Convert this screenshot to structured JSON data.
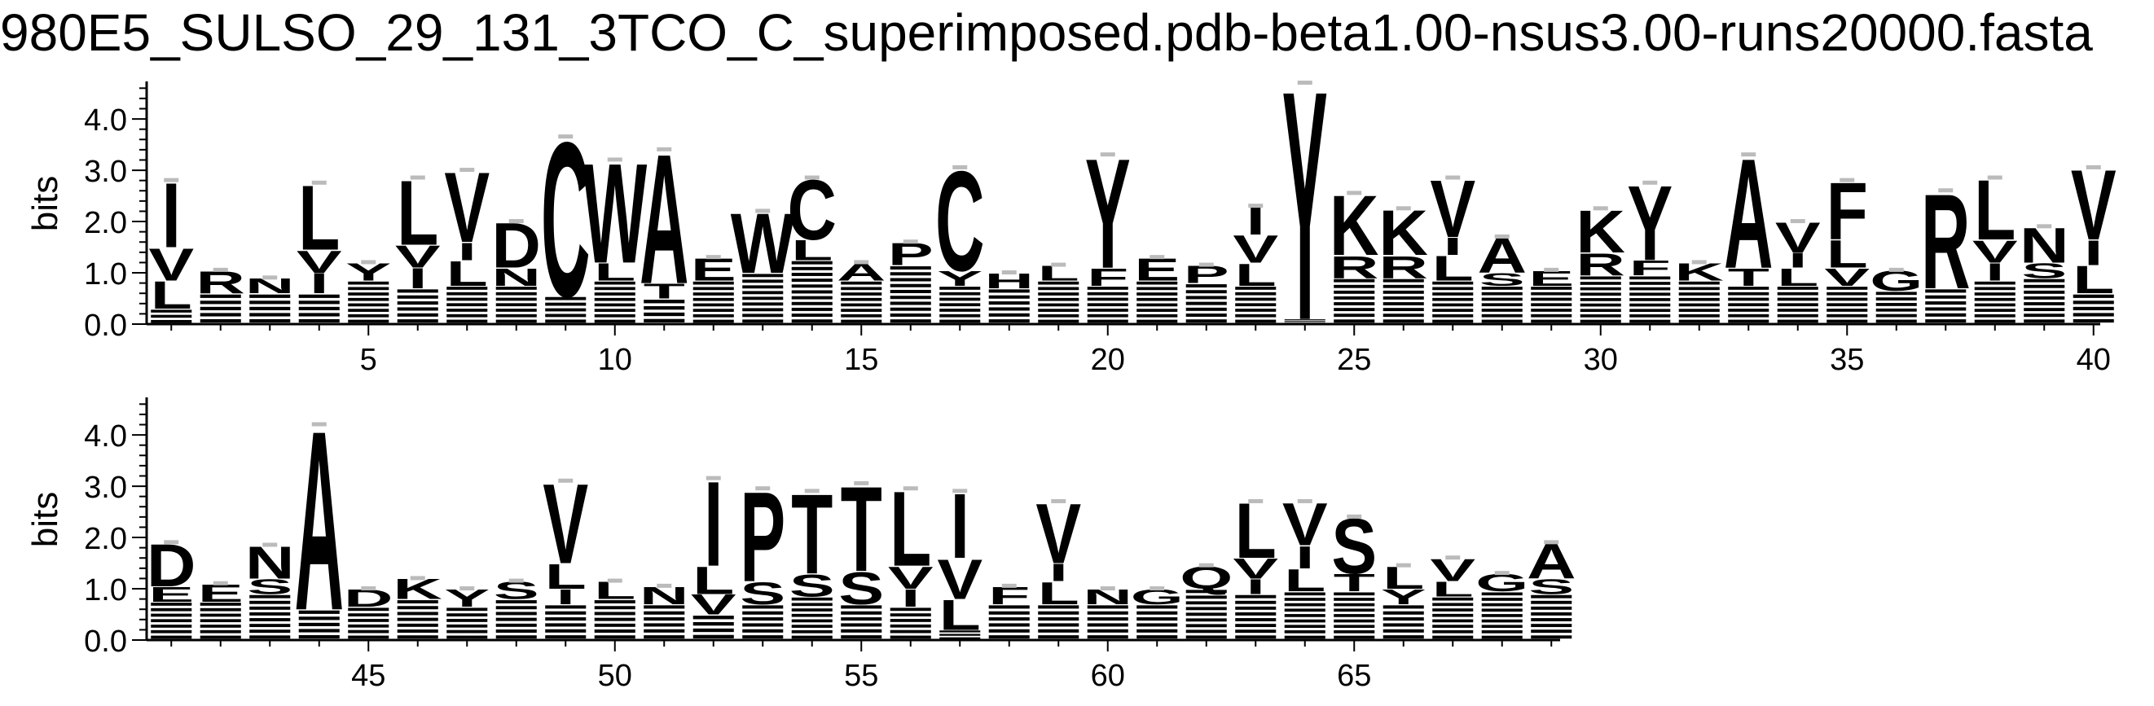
{
  "title": "980E5_SULSO_29_131_3TCO_C_superimposed.pdb-beta1.00-nsus3.00-runs20000.fasta",
  "chart_data": [
    {
      "type": "sequence-logo",
      "ylabel": "bits",
      "ylim": [
        0,
        4.7
      ],
      "yticks": [
        "0.0",
        "1.0",
        "2.0",
        "3.0",
        "4.0"
      ],
      "xlim": [
        1,
        40
      ],
      "xticks": [
        5,
        10,
        15,
        20,
        25,
        30,
        35,
        40
      ],
      "columns": [
        {
          "pos": 1,
          "total": 2.8,
          "letters": [
            {
              "c": "L",
              "h": 0.55
            },
            {
              "c": "V",
              "h": 0.65
            },
            {
              "c": "I",
              "h": 1.3
            }
          ]
        },
        {
          "pos": 2,
          "total": 1.05,
          "letters": [
            {
              "c": "R",
              "h": 0.45
            }
          ]
        },
        {
          "pos": 3,
          "total": 0.9,
          "letters": [
            {
              "c": "N",
              "h": 0.3
            }
          ]
        },
        {
          "pos": 4,
          "total": 2.75,
          "letters": [
            {
              "c": "I",
              "h": 0.4
            },
            {
              "c": "V",
              "h": 0.45
            },
            {
              "c": "L",
              "h": 1.3
            }
          ]
        },
        {
          "pos": 5,
          "total": 1.2,
          "letters": [
            {
              "c": "Y",
              "h": 0.35
            }
          ]
        },
        {
          "pos": 6,
          "total": 2.85,
          "letters": [
            {
              "c": "I",
              "h": 0.4
            },
            {
              "c": "V",
              "h": 0.45
            },
            {
              "c": "L",
              "h": 1.3
            }
          ]
        },
        {
          "pos": 7,
          "total": 3.0,
          "letters": [
            {
              "c": "L",
              "h": 0.5
            },
            {
              "c": "I",
              "h": 0.35
            },
            {
              "c": "V",
              "h": 1.4
            }
          ]
        },
        {
          "pos": 8,
          "total": 2.0,
          "letters": [
            {
              "c": "N",
              "h": 0.35
            },
            {
              "c": "D",
              "h": 0.9
            }
          ]
        },
        {
          "pos": 9,
          "total": 3.65,
          "letters": [
            {
              "c": "C",
              "h": 3.1
            }
          ]
        },
        {
          "pos": 10,
          "total": 3.2,
          "letters": [
            {
              "c": "L",
              "h": 0.35
            },
            {
              "c": "W",
              "h": 2.0
            }
          ]
        },
        {
          "pos": 11,
          "total": 3.4,
          "letters": [
            {
              "c": "T",
              "h": 0.3
            },
            {
              "c": "A",
              "h": 2.6
            }
          ]
        },
        {
          "pos": 12,
          "total": 1.3,
          "letters": [
            {
              "c": "E",
              "h": 0.45
            }
          ]
        },
        {
          "pos": 13,
          "total": 2.2,
          "letters": [
            {
              "c": "W",
              "h": 1.2
            }
          ]
        },
        {
          "pos": 14,
          "total": 2.85,
          "letters": [
            {
              "c": "L",
              "h": 0.4
            },
            {
              "c": "C",
              "h": 1.2
            }
          ]
        },
        {
          "pos": 15,
          "total": 1.2,
          "letters": [
            {
              "c": "A",
              "h": 0.35
            }
          ]
        },
        {
          "pos": 16,
          "total": 1.6,
          "letters": [
            {
              "c": "P",
              "h": 0.45
            }
          ]
        },
        {
          "pos": 17,
          "total": 3.05,
          "letters": [
            {
              "c": "Y",
              "h": 0.3
            },
            {
              "c": "C",
              "h": 2.0
            }
          ]
        },
        {
          "pos": 18,
          "total": 1.0,
          "letters": [
            {
              "c": "H",
              "h": 0.3
            }
          ]
        },
        {
          "pos": 19,
          "total": 1.15,
          "letters": [
            {
              "c": "L",
              "h": 0.3
            }
          ]
        },
        {
          "pos": 20,
          "total": 3.3,
          "letters": [
            {
              "c": "F",
              "h": 0.35
            },
            {
              "c": "Y",
              "h": 2.2
            }
          ]
        },
        {
          "pos": 21,
          "total": 1.3,
          "letters": [
            {
              "c": "E",
              "h": 0.45
            }
          ]
        },
        {
          "pos": 22,
          "total": 1.15,
          "letters": [
            {
              "c": "P",
              "h": 0.35
            }
          ]
        },
        {
          "pos": 23,
          "total": 2.3,
          "letters": [
            {
              "c": "L",
              "h": 0.45
            },
            {
              "c": "V",
              "h": 0.55
            },
            {
              "c": "I",
              "h": 0.55
            }
          ]
        },
        {
          "pos": 24,
          "total": 4.7,
          "letters": [
            {
              "c": "Y",
              "h": 4.6
            }
          ]
        },
        {
          "pos": 25,
          "total": 2.55,
          "letters": [
            {
              "c": "R",
              "h": 0.45
            },
            {
              "c": "K",
              "h": 1.2
            }
          ]
        },
        {
          "pos": 26,
          "total": 2.25,
          "letters": [
            {
              "c": "R",
              "h": 0.45
            },
            {
              "c": "K",
              "h": 0.9
            }
          ]
        },
        {
          "pos": 27,
          "total": 2.85,
          "letters": [
            {
              "c": "L",
              "h": 0.5
            },
            {
              "c": "I",
              "h": 0.35
            },
            {
              "c": "V",
              "h": 1.15
            }
          ]
        },
        {
          "pos": 28,
          "total": 1.7,
          "letters": [
            {
              "c": "S",
              "h": 0.25
            },
            {
              "c": "A",
              "h": 0.7
            }
          ]
        },
        {
          "pos": 29,
          "total": 1.05,
          "letters": [
            {
              "c": "E",
              "h": 0.3
            }
          ]
        },
        {
          "pos": 30,
          "total": 2.25,
          "letters": [
            {
              "c": "R",
              "h": 0.45
            },
            {
              "c": "K",
              "h": 0.85
            }
          ]
        },
        {
          "pos": 31,
          "total": 2.75,
          "letters": [
            {
              "c": "F",
              "h": 0.3
            },
            {
              "c": "Y",
              "h": 1.5
            }
          ]
        },
        {
          "pos": 32,
          "total": 1.2,
          "letters": [
            {
              "c": "K",
              "h": 0.35
            }
          ]
        },
        {
          "pos": 33,
          "total": 3.3,
          "letters": [
            {
              "c": "T",
              "h": 0.35
            },
            {
              "c": "A",
              "h": 2.2
            }
          ]
        },
        {
          "pos": 34,
          "total": 2.0,
          "letters": [
            {
              "c": "L",
              "h": 0.35
            },
            {
              "c": "I",
              "h": 0.3
            },
            {
              "c": "V",
              "h": 0.6
            }
          ]
        },
        {
          "pos": 35,
          "total": 2.8,
          "letters": [
            {
              "c": "V",
              "h": 0.35
            },
            {
              "c": "L",
              "h": 0.55
            },
            {
              "c": "F",
              "h": 1.15
            }
          ]
        },
        {
          "pos": 36,
          "total": 1.05,
          "letters": [
            {
              "c": "G",
              "h": 0.4
            }
          ]
        },
        {
          "pos": 37,
          "total": 2.6,
          "letters": [
            {
              "c": "R",
              "h": 1.9
            }
          ]
        },
        {
          "pos": 38,
          "total": 2.85,
          "letters": [
            {
              "c": "I",
              "h": 0.35
            },
            {
              "c": "V",
              "h": 0.45
            },
            {
              "c": "L",
              "h": 1.2
            }
          ]
        },
        {
          "pos": 39,
          "total": 1.9,
          "letters": [
            {
              "c": "S",
              "h": 0.3
            },
            {
              "c": "N",
              "h": 0.7
            }
          ]
        },
        {
          "pos": 40,
          "total": 3.05,
          "letters": [
            {
              "c": "L",
              "h": 0.55
            },
            {
              "c": "I",
              "h": 0.5
            },
            {
              "c": "V",
              "h": 1.4
            }
          ]
        }
      ]
    },
    {
      "type": "sequence-logo",
      "ylabel": "bits",
      "ylim": [
        0,
        4.7
      ],
      "yticks": [
        "0.0",
        "1.0",
        "2.0",
        "3.0",
        "4.0"
      ],
      "xlim": [
        41,
        69
      ],
      "xticks": [
        45,
        50,
        55,
        60,
        65
      ],
      "columns": [
        {
          "pos": 41,
          "total": 1.9,
          "letters": [
            {
              "c": "E",
              "h": 0.3
            },
            {
              "c": "D",
              "h": 0.85
            }
          ]
        },
        {
          "pos": 42,
          "total": 1.1,
          "letters": [
            {
              "c": "E",
              "h": 0.35
            }
          ]
        },
        {
          "pos": 43,
          "total": 1.85,
          "letters": [
            {
              "c": "S",
              "h": 0.3
            },
            {
              "c": "N",
              "h": 0.65
            }
          ]
        },
        {
          "pos": 44,
          "total": 4.2,
          "letters": [
            {
              "c": "A",
              "h": 3.6
            }
          ]
        },
        {
          "pos": 45,
          "total": 1.0,
          "letters": [
            {
              "c": "D",
              "h": 0.35
            }
          ]
        },
        {
          "pos": 46,
          "total": 1.2,
          "letters": [
            {
              "c": "K",
              "h": 0.4
            }
          ]
        },
        {
          "pos": 47,
          "total": 1.0,
          "letters": [
            {
              "c": "Y",
              "h": 0.35
            }
          ]
        },
        {
          "pos": 48,
          "total": 1.15,
          "letters": [
            {
              "c": "S",
              "h": 0.35
            }
          ]
        },
        {
          "pos": 49,
          "total": 3.1,
          "letters": [
            {
              "c": "I",
              "h": 0.3
            },
            {
              "c": "L",
              "h": 0.5
            },
            {
              "c": "V",
              "h": 1.6
            }
          ]
        },
        {
          "pos": 50,
          "total": 1.15,
          "letters": [
            {
              "c": "L",
              "h": 0.35
            }
          ]
        },
        {
          "pos": 51,
          "total": 1.05,
          "letters": [
            {
              "c": "N",
              "h": 0.35
            }
          ]
        },
        {
          "pos": 52,
          "total": 3.15,
          "letters": [
            {
              "c": "V",
              "h": 0.4
            },
            {
              "c": "L",
              "h": 0.55
            },
            {
              "c": "I",
              "h": 1.7
            }
          ]
        },
        {
          "pos": 53,
          "total": 2.95,
          "letters": [
            {
              "c": "S",
              "h": 0.45
            },
            {
              "c": "P",
              "h": 1.8
            }
          ]
        },
        {
          "pos": 54,
          "total": 2.9,
          "letters": [
            {
              "c": "S",
              "h": 0.45
            },
            {
              "c": "T",
              "h": 1.6
            }
          ]
        },
        {
          "pos": 55,
          "total": 3.05,
          "letters": [
            {
              "c": "S",
              "h": 0.65
            },
            {
              "c": "T",
              "h": 1.7
            }
          ]
        },
        {
          "pos": 56,
          "total": 2.95,
          "letters": [
            {
              "c": "I",
              "h": 0.35
            },
            {
              "c": "V",
              "h": 0.45
            },
            {
              "c": "L",
              "h": 1.5
            }
          ]
        },
        {
          "pos": 57,
          "total": 2.9,
          "letters": [
            {
              "c": "L",
              "h": 0.6
            },
            {
              "c": "V",
              "h": 0.8
            },
            {
              "c": "I",
              "h": 1.3
            }
          ]
        },
        {
          "pos": 58,
          "total": 1.05,
          "letters": [
            {
              "c": "F",
              "h": 0.35
            }
          ]
        },
        {
          "pos": 59,
          "total": 2.7,
          "letters": [
            {
              "c": "L",
              "h": 0.45
            },
            {
              "c": "I",
              "h": 0.35
            },
            {
              "c": "V",
              "h": 1.2
            }
          ]
        },
        {
          "pos": 60,
          "total": 1.0,
          "letters": [
            {
              "c": "N",
              "h": 0.3
            }
          ]
        },
        {
          "pos": 61,
          "total": 1.0,
          "letters": [
            {
              "c": "G",
              "h": 0.3
            }
          ]
        },
        {
          "pos": 62,
          "total": 1.45,
          "letters": [
            {
              "c": "Q",
              "h": 0.45
            }
          ]
        },
        {
          "pos": 63,
          "total": 2.7,
          "letters": [
            {
              "c": "I",
              "h": 0.3
            },
            {
              "c": "V",
              "h": 0.4
            },
            {
              "c": "L",
              "h": 1.1
            }
          ]
        },
        {
          "pos": 64,
          "total": 2.7,
          "letters": [
            {
              "c": "L",
              "h": 0.45
            },
            {
              "c": "I",
              "h": 0.45
            },
            {
              "c": "V",
              "h": 0.85
            }
          ]
        },
        {
          "pos": 65,
          "total": 2.4,
          "letters": [
            {
              "c": "T",
              "h": 0.35
            },
            {
              "c": "S",
              "h": 1.1
            }
          ]
        },
        {
          "pos": 66,
          "total": 1.45,
          "letters": [
            {
              "c": "Y",
              "h": 0.3
            },
            {
              "c": "L",
              "h": 0.45
            }
          ]
        },
        {
          "pos": 67,
          "total": 1.6,
          "letters": [
            {
              "c": "L",
              "h": 0.3
            },
            {
              "c": "V",
              "h": 0.45
            }
          ]
        },
        {
          "pos": 68,
          "total": 1.3,
          "letters": [
            {
              "c": "G",
              "h": 0.35
            }
          ]
        },
        {
          "pos": 69,
          "total": 1.9,
          "letters": [
            {
              "c": "S",
              "h": 0.3
            },
            {
              "c": "A",
              "h": 0.7
            }
          ]
        }
      ]
    }
  ]
}
